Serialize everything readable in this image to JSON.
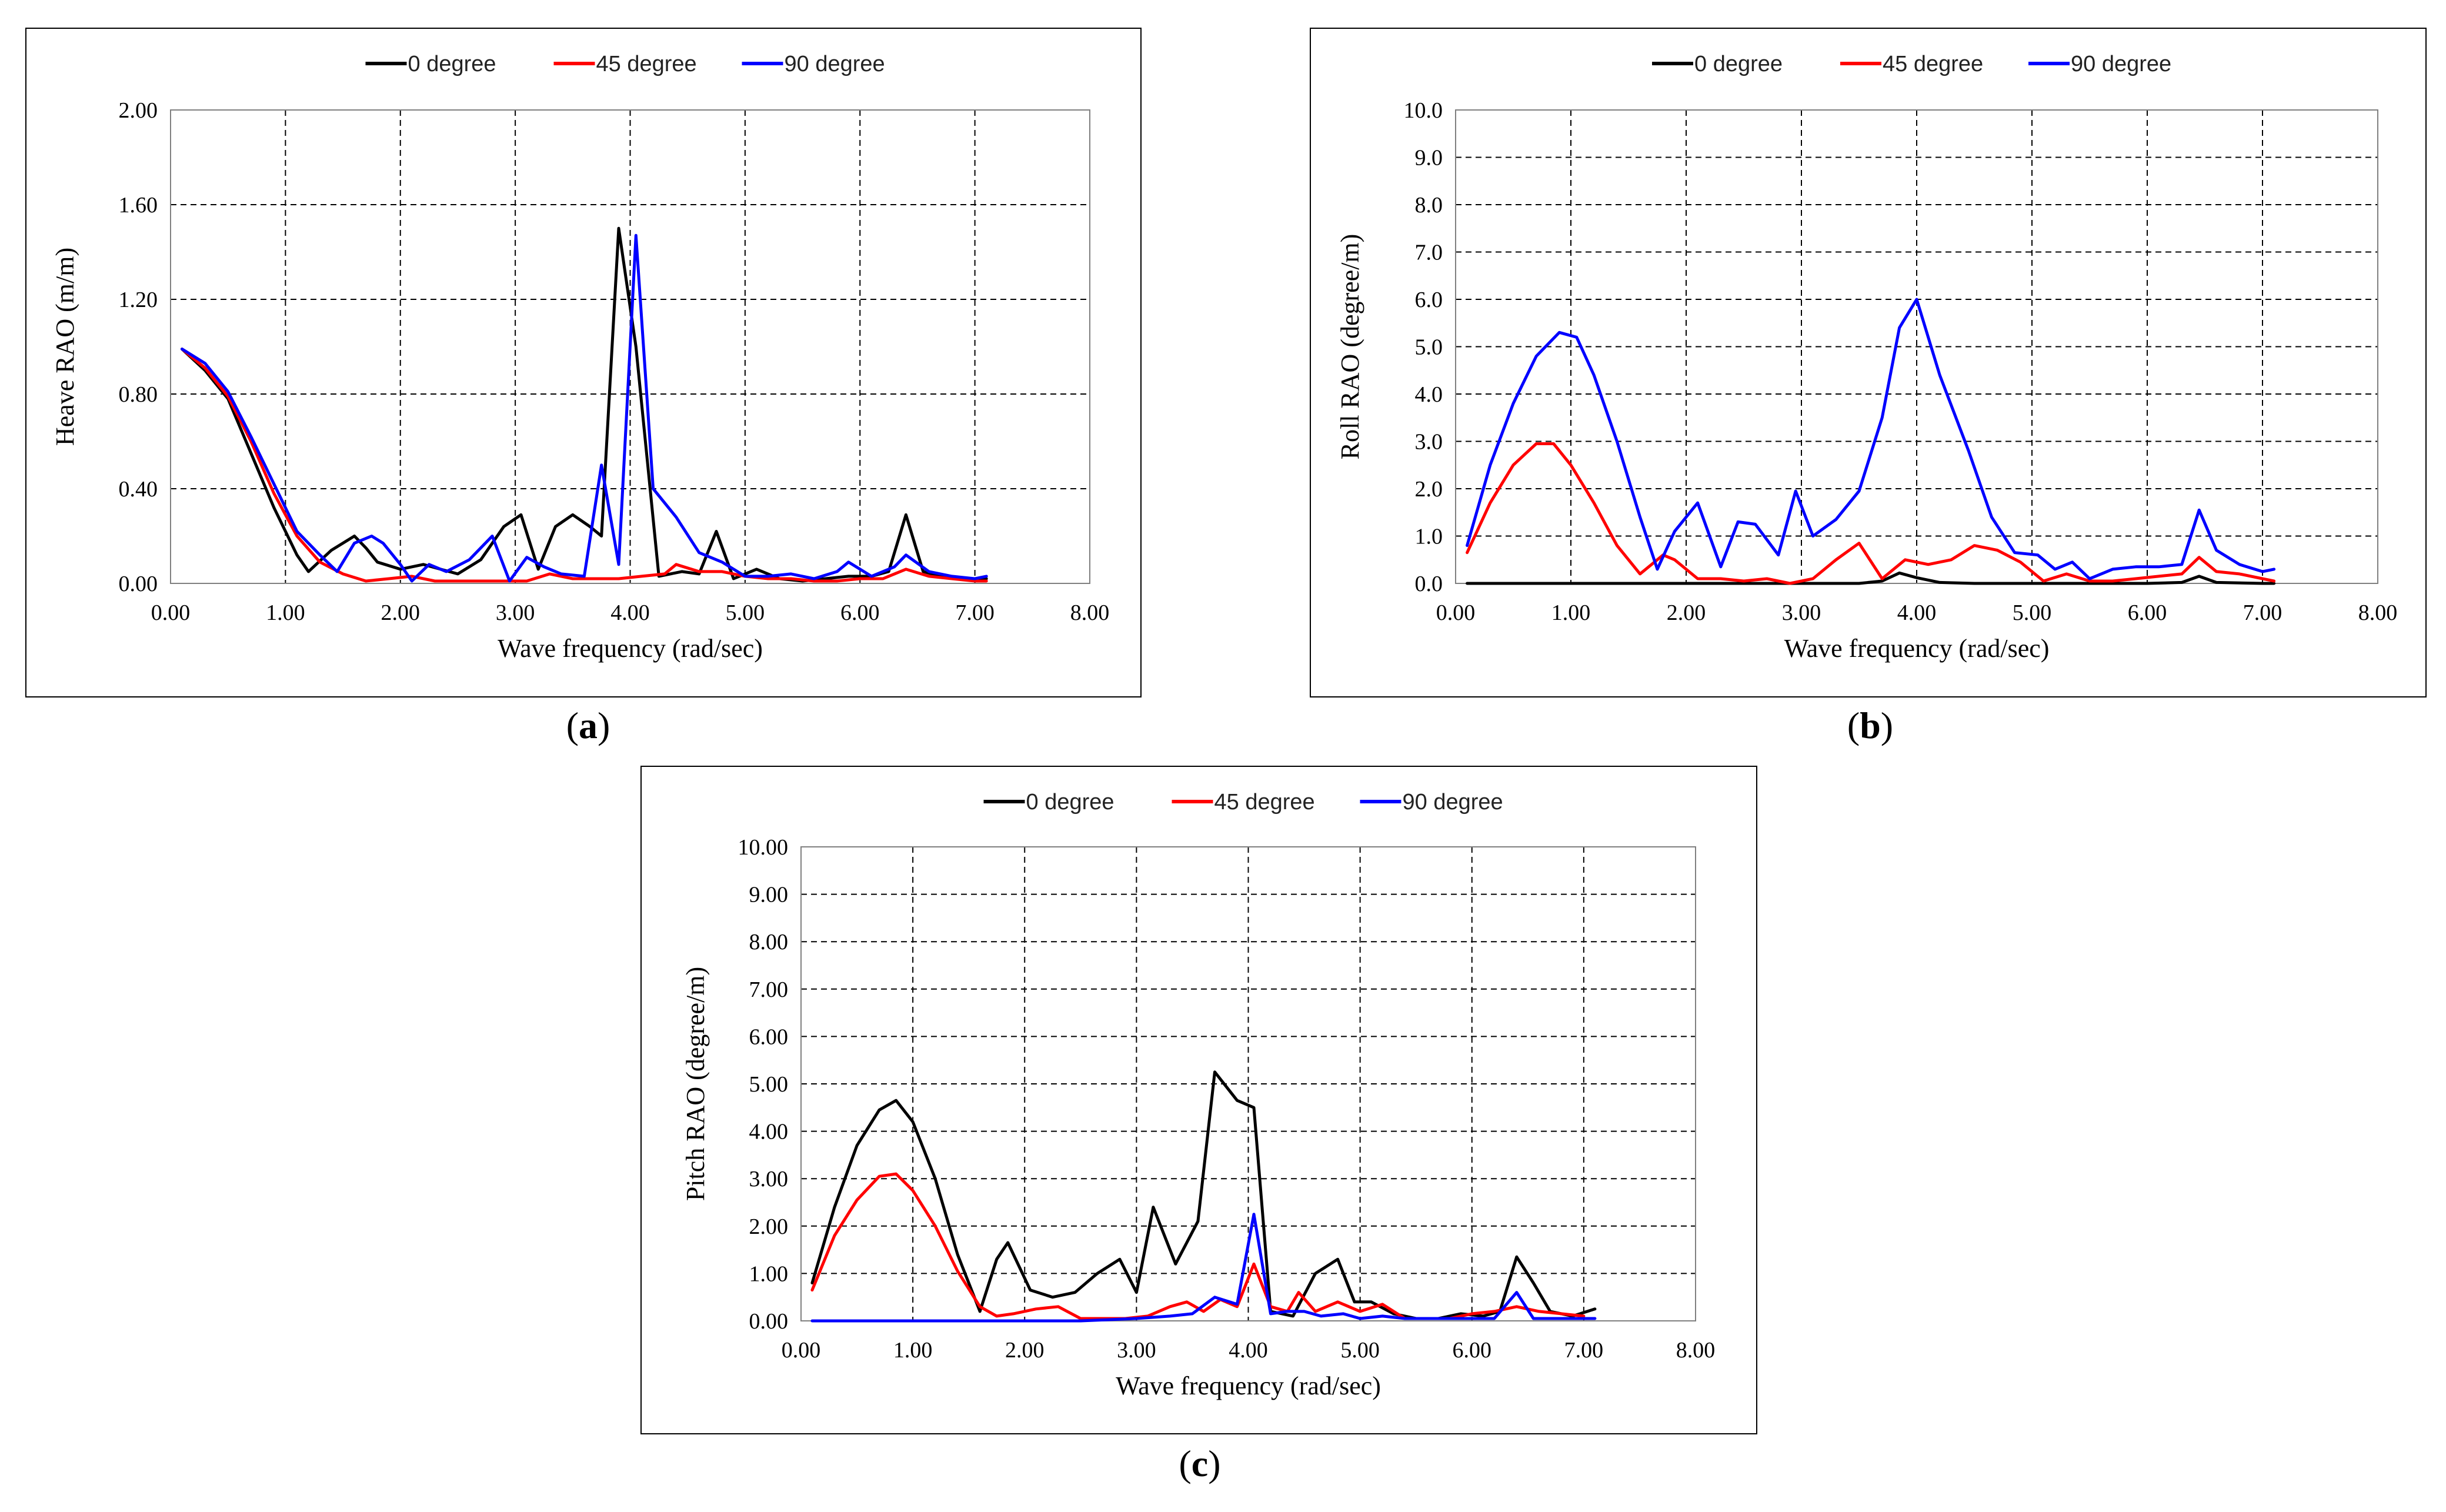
{
  "charts": [
    {
      "id": "a",
      "panel_label": "a",
      "chart_data": {
        "type": "line",
        "xlabel": "Wave frequency (rad/sec)",
        "ylabel": "Heave RAO (m/m)",
        "xlim": [
          0,
          8
        ],
        "ylim": [
          0,
          2
        ],
        "xticks": [
          "0.00",
          "1.00",
          "2.00",
          "3.00",
          "4.00",
          "5.00",
          "6.00",
          "7.00",
          "8.00"
        ],
        "yticks": [
          "0.00",
          "0.40",
          "0.80",
          "1.20",
          "1.60",
          "2.00"
        ],
        "legend": "top",
        "series": [
          {
            "name": "0 degree",
            "color": "#000000",
            "x": [
              0.1,
              0.3,
              0.5,
              0.7,
              0.9,
              1.1,
              1.2,
              1.4,
              1.6,
              1.7,
              1.8,
              2.0,
              2.2,
              2.5,
              2.7,
              2.9,
              3.05,
              3.2,
              3.35,
              3.5,
              3.65,
              3.75,
              3.9,
              4.05,
              4.25,
              4.45,
              4.6,
              4.75,
              4.9,
              5.1,
              5.3,
              5.5,
              5.7,
              5.9,
              6.1,
              6.25,
              6.4,
              6.55,
              6.7,
              6.9,
              7.1
            ],
            "y": [
              0.99,
              0.9,
              0.78,
              0.55,
              0.32,
              0.12,
              0.05,
              0.14,
              0.2,
              0.15,
              0.09,
              0.06,
              0.08,
              0.04,
              0.1,
              0.24,
              0.29,
              0.06,
              0.24,
              0.29,
              0.24,
              0.2,
              1.5,
              1.0,
              0.03,
              0.05,
              0.04,
              0.22,
              0.02,
              0.06,
              0.02,
              0.01,
              0.02,
              0.03,
              0.03,
              0.05,
              0.29,
              0.05,
              0.03,
              0.02,
              0.02
            ]
          },
          {
            "name": "45 degree",
            "color": "#ff0000",
            "x": [
              0.1,
              0.3,
              0.5,
              0.7,
              0.9,
              1.1,
              1.3,
              1.5,
              1.7,
              1.9,
              2.1,
              2.3,
              2.5,
              2.7,
              2.9,
              3.1,
              3.3,
              3.5,
              3.7,
              3.9,
              4.1,
              4.3,
              4.4,
              4.6,
              4.8,
              5.0,
              5.2,
              5.4,
              5.6,
              5.8,
              6.0,
              6.2,
              6.4,
              6.6,
              6.8,
              7.0,
              7.1
            ],
            "y": [
              0.99,
              0.91,
              0.79,
              0.6,
              0.38,
              0.2,
              0.09,
              0.04,
              0.01,
              0.02,
              0.03,
              0.01,
              0.01,
              0.01,
              0.01,
              0.01,
              0.04,
              0.02,
              0.02,
              0.02,
              0.03,
              0.04,
              0.08,
              0.05,
              0.05,
              0.03,
              0.02,
              0.02,
              0.01,
              0.01,
              0.02,
              0.02,
              0.06,
              0.03,
              0.02,
              0.01,
              0.01
            ]
          },
          {
            "name": "90 degree",
            "color": "#0000ff",
            "x": [
              0.1,
              0.3,
              0.5,
              0.7,
              0.9,
              1.1,
              1.3,
              1.45,
              1.6,
              1.75,
              1.85,
              2.0,
              2.1,
              2.25,
              2.4,
              2.6,
              2.8,
              2.95,
              3.1,
              3.25,
              3.4,
              3.6,
              3.75,
              3.9,
              4.05,
              4.2,
              4.4,
              4.6,
              4.8,
              5.0,
              5.2,
              5.4,
              5.6,
              5.8,
              5.9,
              6.1,
              6.3,
              6.4,
              6.6,
              6.8,
              7.0,
              7.1
            ],
            "y": [
              0.99,
              0.93,
              0.81,
              0.62,
              0.42,
              0.22,
              0.12,
              0.05,
              0.17,
              0.2,
              0.17,
              0.08,
              0.01,
              0.08,
              0.05,
              0.1,
              0.2,
              0.01,
              0.11,
              0.07,
              0.04,
              0.03,
              0.5,
              0.08,
              1.47,
              0.4,
              0.28,
              0.13,
              0.09,
              0.03,
              0.03,
              0.04,
              0.02,
              0.05,
              0.09,
              0.03,
              0.07,
              0.12,
              0.05,
              0.03,
              0.02,
              0.03
            ]
          }
        ]
      }
    },
    {
      "id": "b",
      "panel_label": "b",
      "chart_data": {
        "type": "line",
        "xlabel": "Wave frequency (rad/sec)",
        "ylabel": "Roll RAO (degree/m)",
        "xlim": [
          0,
          8
        ],
        "ylim": [
          0,
          10
        ],
        "xticks": [
          "0.00",
          "1.00",
          "2.00",
          "3.00",
          "4.00",
          "5.00",
          "6.00",
          "7.00",
          "8.00"
        ],
        "yticks": [
          "0.0",
          "1.0",
          "2.0",
          "3.0",
          "4.0",
          "5.0",
          "6.0",
          "7.0",
          "8.0",
          "9.0",
          "10.0"
        ],
        "legend": "top",
        "series": [
          {
            "name": "0 degree",
            "color": "#000000",
            "x": [
              0.1,
              0.5,
              1.0,
              1.5,
              2.0,
              2.5,
              3.0,
              3.5,
              3.7,
              3.85,
              4.0,
              4.2,
              4.5,
              5.0,
              5.5,
              6.0,
              6.3,
              6.45,
              6.6,
              7.0,
              7.1
            ],
            "y": [
              0,
              0,
              0,
              0,
              0,
              0,
              0,
              0,
              0.05,
              0.22,
              0.12,
              0.02,
              0,
              0,
              0,
              0,
              0.02,
              0.15,
              0.02,
              0,
              0
            ]
          },
          {
            "name": "45 degree",
            "color": "#ff0000",
            "x": [
              0.1,
              0.3,
              0.5,
              0.7,
              0.85,
              1.0,
              1.2,
              1.4,
              1.6,
              1.8,
              1.9,
              2.1,
              2.3,
              2.5,
              2.7,
              2.9,
              3.1,
              3.3,
              3.5,
              3.7,
              3.9,
              4.1,
              4.3,
              4.5,
              4.7,
              4.9,
              5.1,
              5.3,
              5.5,
              5.7,
              5.9,
              6.1,
              6.3,
              6.45,
              6.6,
              6.8,
              7.0,
              7.1
            ],
            "y": [
              0.65,
              1.7,
              2.5,
              2.95,
              2.95,
              2.5,
              1.7,
              0.8,
              0.2,
              0.6,
              0.5,
              0.1,
              0.1,
              0.05,
              0.1,
              0,
              0.1,
              0.5,
              0.85,
              0.1,
              0.5,
              0.4,
              0.5,
              0.8,
              0.7,
              0.45,
              0.05,
              0.2,
              0.05,
              0.05,
              0.1,
              0.15,
              0.2,
              0.55,
              0.25,
              0.2,
              0.1,
              0.05
            ]
          },
          {
            "name": "90 degree",
            "color": "#0000ff",
            "x": [
              0.1,
              0.3,
              0.5,
              0.7,
              0.9,
              1.05,
              1.2,
              1.4,
              1.6,
              1.75,
              1.9,
              2.1,
              2.3,
              2.45,
              2.6,
              2.8,
              2.95,
              3.1,
              3.3,
              3.5,
              3.7,
              3.85,
              4.0,
              4.2,
              4.45,
              4.65,
              4.85,
              5.05,
              5.2,
              5.35,
              5.5,
              5.7,
              5.9,
              6.1,
              6.3,
              6.45,
              6.6,
              6.8,
              7.0,
              7.1
            ],
            "y": [
              0.8,
              2.5,
              3.8,
              4.8,
              5.3,
              5.2,
              4.4,
              3.0,
              1.4,
              0.3,
              1.1,
              1.7,
              0.35,
              1.3,
              1.25,
              0.6,
              1.95,
              1.0,
              1.35,
              1.95,
              3.5,
              5.4,
              6.0,
              4.4,
              2.8,
              1.4,
              0.65,
              0.6,
              0.3,
              0.45,
              0.1,
              0.3,
              0.35,
              0.35,
              0.4,
              1.55,
              0.7,
              0.4,
              0.25,
              0.3
            ]
          }
        ]
      }
    },
    {
      "id": "c",
      "panel_label": "c",
      "chart_data": {
        "type": "line",
        "xlabel": "Wave frequency (rad/sec)",
        "ylabel": "Pitch RAO (degree/m)",
        "xlim": [
          0,
          8
        ],
        "ylim": [
          0,
          10
        ],
        "xticks": [
          "0.00",
          "1.00",
          "2.00",
          "3.00",
          "4.00",
          "5.00",
          "6.00",
          "7.00",
          "8.00"
        ],
        "yticks": [
          "0.00",
          "1.00",
          "2.00",
          "3.00",
          "4.00",
          "5.00",
          "6.00",
          "7.00",
          "8.00",
          "9.00",
          "10.00"
        ],
        "legend": "top",
        "series": [
          {
            "name": "0 degree",
            "color": "#000000",
            "x": [
              0.1,
              0.3,
              0.5,
              0.7,
              0.85,
              1.0,
              1.2,
              1.4,
              1.6,
              1.75,
              1.85,
              2.05,
              2.25,
              2.45,
              2.65,
              2.85,
              3.0,
              3.15,
              3.35,
              3.55,
              3.7,
              3.9,
              4.05,
              4.2,
              4.4,
              4.6,
              4.8,
              4.95,
              5.1,
              5.3,
              5.5,
              5.7,
              5.9,
              6.1,
              6.25,
              6.4,
              6.55,
              6.7,
              6.9,
              7.1
            ],
            "y": [
              0.8,
              2.4,
              3.7,
              4.45,
              4.65,
              4.2,
              3.0,
              1.4,
              0.2,
              1.3,
              1.65,
              0.65,
              0.5,
              0.6,
              1.0,
              1.3,
              0.6,
              2.4,
              1.2,
              2.1,
              5.25,
              4.65,
              4.5,
              0.2,
              0.1,
              1.0,
              1.3,
              0.4,
              0.4,
              0.15,
              0.05,
              0.05,
              0.15,
              0.1,
              0.2,
              1.35,
              0.8,
              0.2,
              0.1,
              0.25
            ]
          },
          {
            "name": "45 degree",
            "color": "#ff0000",
            "x": [
              0.1,
              0.3,
              0.5,
              0.7,
              0.85,
              1.0,
              1.2,
              1.4,
              1.6,
              1.75,
              1.9,
              2.1,
              2.3,
              2.5,
              2.7,
              2.9,
              3.1,
              3.3,
              3.45,
              3.6,
              3.75,
              3.9,
              4.05,
              4.2,
              4.35,
              4.45,
              4.6,
              4.8,
              5.0,
              5.2,
              5.4,
              5.6,
              5.8,
              6.0,
              6.2,
              6.4,
              6.6,
              6.8,
              7.0
            ],
            "y": [
              0.65,
              1.8,
              2.55,
              3.05,
              3.1,
              2.75,
              2.0,
              1.05,
              0.3,
              0.1,
              0.15,
              0.25,
              0.3,
              0.05,
              0.05,
              0.05,
              0.1,
              0.3,
              0.4,
              0.2,
              0.45,
              0.3,
              1.2,
              0.3,
              0.2,
              0.6,
              0.2,
              0.4,
              0.2,
              0.35,
              0.05,
              0.05,
              0.05,
              0.15,
              0.2,
              0.3,
              0.2,
              0.15,
              0.1
            ]
          },
          {
            "name": "90 degree",
            "color": "#0000ff",
            "x": [
              0.1,
              1.0,
              2.0,
              2.5,
              3.0,
              3.3,
              3.5,
              3.7,
              3.9,
              4.05,
              4.2,
              4.35,
              4.5,
              4.65,
              4.85,
              5.0,
              5.2,
              5.4,
              5.6,
              5.8,
              6.0,
              6.2,
              6.4,
              6.55,
              6.7,
              6.9,
              7.1
            ],
            "y": [
              0,
              0,
              0,
              0,
              0.05,
              0.1,
              0.15,
              0.5,
              0.35,
              2.25,
              0.15,
              0.2,
              0.2,
              0.1,
              0.15,
              0.05,
              0.1,
              0.05,
              0.05,
              0.05,
              0.05,
              0.05,
              0.6,
              0.05,
              0.05,
              0.05,
              0.05
            ]
          }
        ]
      }
    }
  ]
}
